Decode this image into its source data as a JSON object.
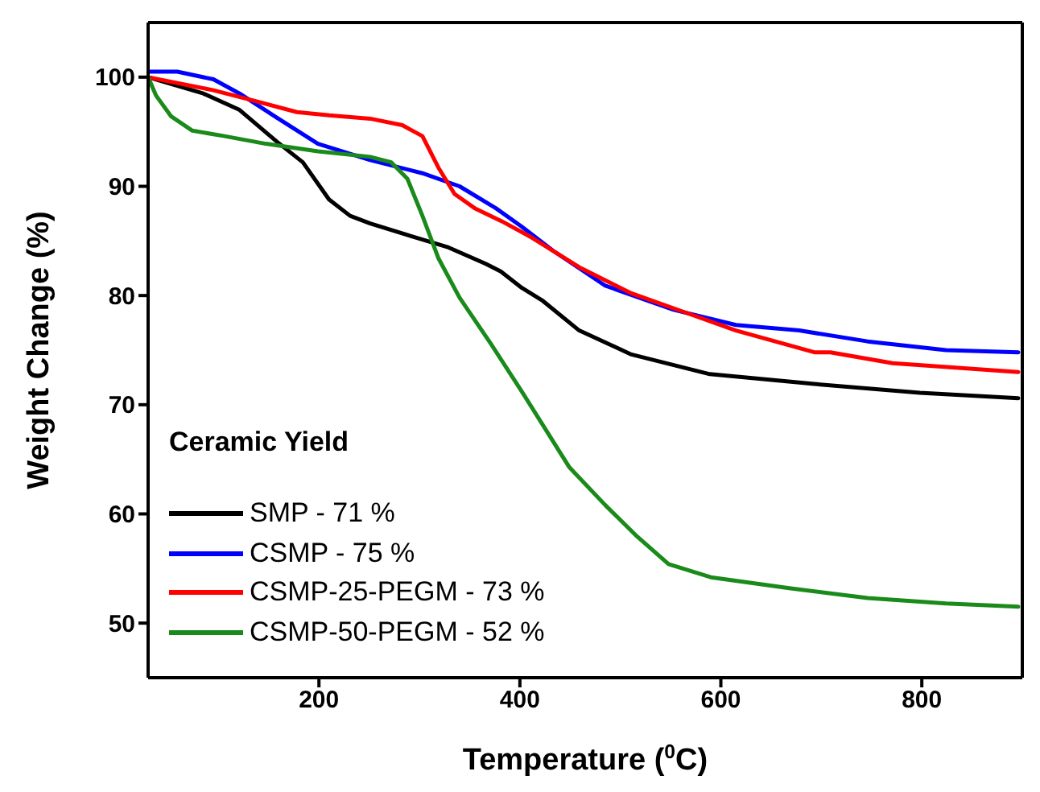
{
  "chart_data": {
    "type": "line",
    "xlabel": "Temperature ($^{0}$C)",
    "ylabel": "Weight Change (%)",
    "legend_title": "Ceramic Yield",
    "legend": "bottom left",
    "grid": false,
    "marker": "none",
    "line_style": "solid",
    "xlim": [
      30,
      900
    ],
    "xticks": [
      200,
      400,
      600,
      800
    ],
    "ylim": [
      45,
      105
    ],
    "yticks": [
      50,
      60,
      70,
      80,
      90,
      100
    ],
    "series": [
      {
        "name": "SMP - 71 %",
        "color": "#000000",
        "x": [
          30,
          85,
          121,
          158,
          184,
          210,
          231,
          251,
          293,
          329,
          366,
          381,
          402,
          423,
          459,
          511,
          589,
          693,
          798,
          896
        ],
        "values": [
          100,
          98.5,
          97,
          94.1,
          92.2,
          88.8,
          87.3,
          86.6,
          85.4,
          84.4,
          82.9,
          82.2,
          80.7,
          79.5,
          76.8,
          74.6,
          72.8,
          71.9,
          71.1,
          70.6
        ]
      },
      {
        "name": "CSMP - 75 %",
        "color": "#0000ff",
        "x": [
          30,
          59,
          95,
          121,
          158,
          199,
          251,
          303,
          340,
          376,
          402,
          433,
          485,
          553,
          615,
          678,
          746,
          824,
          896
        ],
        "values": [
          100.5,
          100.5,
          99.8,
          98.5,
          96.3,
          93.9,
          92.4,
          91.2,
          90,
          88,
          86.3,
          84.1,
          80.9,
          78.7,
          77.3,
          76.8,
          75.8,
          75,
          74.8
        ]
      },
      {
        "name": "CSMP-25-PEGM - 73 %",
        "color": "#ff0000",
        "x": [
          30,
          95,
          137,
          178,
          210,
          251,
          283,
          303,
          319,
          335,
          355,
          382,
          412,
          459,
          511,
          563,
          615,
          693,
          709,
          771,
          896
        ],
        "values": [
          100,
          98.8,
          97.8,
          96.8,
          96.5,
          96.2,
          95.6,
          94.6,
          91.7,
          89.3,
          88,
          86.8,
          85.3,
          82.6,
          80.2,
          78.5,
          76.8,
          74.8,
          74.8,
          73.8,
          73
        ]
      },
      {
        "name": "CSMP-50-PEGM - 52 %",
        "color": "#1a8a1a",
        "x": [
          30,
          38,
          53,
          74,
          106,
          147,
          199,
          251,
          272,
          288,
          303,
          319,
          340,
          371,
          402,
          449,
          485,
          517,
          548,
          590,
          668,
          746,
          824,
          896
        ],
        "values": [
          100,
          98.3,
          96.4,
          95.1,
          94.6,
          93.9,
          93.2,
          92.7,
          92.2,
          90.7,
          87.3,
          83.4,
          79.8,
          75.6,
          71.2,
          64.3,
          60.8,
          57.9,
          55.4,
          54.2,
          53.2,
          52.3,
          51.8,
          51.5
        ]
      }
    ]
  }
}
